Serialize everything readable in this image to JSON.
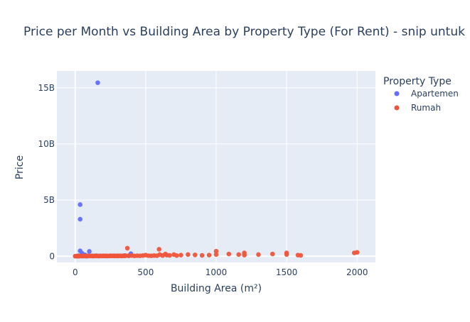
{
  "chart_data": {
    "type": "scatter",
    "title": "Price per Month vs Building Area by Property Type (For Rent) - snip untuk",
    "xlabel": "Building Area (m²)",
    "ylabel": "Price",
    "xlim": [
      -130,
      2130
    ],
    "ylim": [
      -550000000,
      16500000000
    ],
    "x_ticks": [
      0,
      500,
      1000,
      1500,
      2000
    ],
    "x_tick_labels": [
      "0",
      "500",
      "1000",
      "1500",
      "2000"
    ],
    "y_ticks": [
      0,
      5000000000,
      10000000000,
      15000000000
    ],
    "y_tick_labels": [
      "0",
      "5B",
      "10B",
      "15B"
    ],
    "grid": true,
    "legend": {
      "title": "Property Type",
      "placement": "right"
    },
    "colors": {
      "plot_bg": "#e5ecf6",
      "grid": "#ffffff",
      "text": "#2a3f5f"
    },
    "series": [
      {
        "name": "Apartemen",
        "color": "#636efa",
        "points": [
          [
            160,
            15450000000
          ],
          [
            35,
            4600000000
          ],
          [
            35,
            3300000000
          ],
          [
            35,
            480000000
          ],
          [
            100,
            430000000
          ],
          [
            50,
            250000000
          ],
          [
            70,
            120000000
          ],
          [
            20,
            40000000
          ],
          [
            30,
            30000000
          ],
          [
            40,
            20000000
          ],
          [
            45,
            60000000
          ],
          [
            55,
            30000000
          ],
          [
            60,
            15000000
          ],
          [
            75,
            25000000
          ],
          [
            80,
            10000000
          ],
          [
            90,
            20000000
          ],
          [
            120,
            35000000
          ],
          [
            150,
            50000000
          ],
          [
            170,
            20000000
          ],
          [
            200,
            30000000
          ],
          [
            220,
            25000000
          ],
          [
            250,
            40000000
          ],
          [
            280,
            30000000
          ],
          [
            300,
            20000000
          ],
          [
            350,
            60000000
          ],
          [
            380,
            50000000
          ],
          [
            395,
            230000000
          ],
          [
            25,
            10000000
          ],
          [
            65,
            80000000
          ],
          [
            130,
            25000000
          ]
        ]
      },
      {
        "name": "Rumah",
        "color": "#ef553b",
        "points": [
          [
            0,
            10000000
          ],
          [
            5,
            5000000
          ],
          [
            10,
            15000000
          ],
          [
            15,
            10000000
          ],
          [
            20,
            12000000
          ],
          [
            25,
            8000000
          ],
          [
            30,
            20000000
          ],
          [
            40,
            25000000
          ],
          [
            50,
            15000000
          ],
          [
            60,
            30000000
          ],
          [
            70,
            20000000
          ],
          [
            80,
            18000000
          ],
          [
            90,
            25000000
          ],
          [
            100,
            30000000
          ],
          [
            110,
            20000000
          ],
          [
            120,
            25000000
          ],
          [
            130,
            15000000
          ],
          [
            140,
            30000000
          ],
          [
            150,
            20000000
          ],
          [
            160,
            25000000
          ],
          [
            170,
            18000000
          ],
          [
            180,
            30000000
          ],
          [
            190,
            20000000
          ],
          [
            200,
            35000000
          ],
          [
            210,
            25000000
          ],
          [
            220,
            30000000
          ],
          [
            230,
            20000000
          ],
          [
            240,
            25000000
          ],
          [
            250,
            40000000
          ],
          [
            260,
            30000000
          ],
          [
            270,
            35000000
          ],
          [
            280,
            25000000
          ],
          [
            290,
            30000000
          ],
          [
            300,
            40000000
          ],
          [
            310,
            30000000
          ],
          [
            320,
            35000000
          ],
          [
            330,
            25000000
          ],
          [
            340,
            40000000
          ],
          [
            350,
            30000000
          ],
          [
            360,
            50000000
          ],
          [
            370,
            720000000
          ],
          [
            380,
            40000000
          ],
          [
            400,
            60000000
          ],
          [
            420,
            30000000
          ],
          [
            440,
            50000000
          ],
          [
            460,
            40000000
          ],
          [
            480,
            60000000
          ],
          [
            500,
            100000000
          ],
          [
            520,
            50000000
          ],
          [
            540,
            40000000
          ],
          [
            560,
            60000000
          ],
          [
            580,
            50000000
          ],
          [
            595,
            620000000
          ],
          [
            600,
            150000000
          ],
          [
            620,
            60000000
          ],
          [
            640,
            200000000
          ],
          [
            650,
            100000000
          ],
          [
            670,
            80000000
          ],
          [
            700,
            150000000
          ],
          [
            720,
            60000000
          ],
          [
            750,
            100000000
          ],
          [
            800,
            150000000
          ],
          [
            850,
            120000000
          ],
          [
            900,
            80000000
          ],
          [
            950,
            100000000
          ],
          [
            1000,
            450000000
          ],
          [
            1000,
            150000000
          ],
          [
            1090,
            200000000
          ],
          [
            1160,
            150000000
          ],
          [
            1200,
            300000000
          ],
          [
            1200,
            100000000
          ],
          [
            1300,
            150000000
          ],
          [
            1400,
            200000000
          ],
          [
            1500,
            300000000
          ],
          [
            1500,
            150000000
          ],
          [
            1580,
            100000000
          ],
          [
            1600,
            80000000
          ],
          [
            1980,
            300000000
          ],
          [
            2000,
            350000000
          ]
        ]
      }
    ]
  }
}
